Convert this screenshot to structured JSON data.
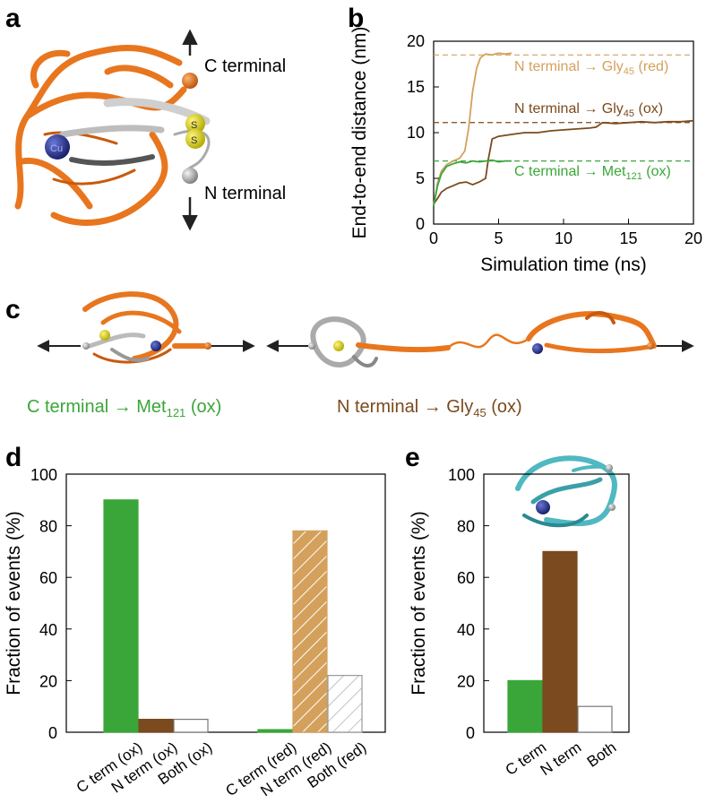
{
  "panels": {
    "a": {
      "label": "a",
      "c_terminal": "C terminal",
      "n_terminal": "N terminal",
      "s_atom": "S",
      "cu_atom": "Cu"
    },
    "b": {
      "label": "b",
      "annotations": [
        {
          "text": "N terminal",
          "arrow": "→",
          "target": "Gly",
          "sub": "45",
          "suffix": " (red)",
          "color": "#d4a15c"
        },
        {
          "text": "N terminal",
          "arrow": "→",
          "target": "Gly",
          "sub": "45",
          "suffix": " (ox)",
          "color": "#7b4a1e"
        },
        {
          "text": "C terminal",
          "arrow": "→",
          "target": "Met",
          "sub": "121",
          "suffix": " (ox)",
          "color": "#3aa63a"
        }
      ]
    },
    "c": {
      "label": "c",
      "left_caption": {
        "text": "C terminal",
        "target": "Met",
        "sub": "121",
        "suffix": " (ox)",
        "color": "#3aa63a"
      },
      "right_caption": {
        "text": "N terminal",
        "target": "Gly",
        "sub": "45",
        "suffix": " (ox)",
        "color": "#7b4a1e"
      }
    },
    "d": {
      "label": "d"
    },
    "e": {
      "label": "e"
    }
  },
  "colors": {
    "green": "#3aa63a",
    "brown": "#7b4a1e",
    "tan": "#d4a15c",
    "orange": "#e8761e",
    "silver": "#b0b0b0",
    "cyan": "#4fb8c0",
    "navy": "#1f2e8c",
    "yellow": "#e6dc1a"
  },
  "chart_data": [
    {
      "panel": "b",
      "type": "line",
      "xlabel": "Simulation time (ns)",
      "ylabel": "End-to-end distance (nm)",
      "xlim": [
        0,
        20
      ],
      "ylim": [
        0,
        20
      ],
      "xticks": [
        0,
        5,
        10,
        15,
        20
      ],
      "yticks": [
        0,
        5,
        10,
        15,
        20
      ],
      "series": [
        {
          "color": "#d4a15c",
          "x": [
            0,
            0.3,
            0.6,
            1.0,
            1.5,
            2.0,
            2.4,
            2.7,
            3.0,
            3.3,
            3.6,
            4.0,
            4.5,
            5.0,
            5.5,
            6.0
          ],
          "y": [
            2.0,
            4.5,
            5.8,
            6.5,
            6.9,
            7.2,
            8.0,
            10.5,
            14.5,
            17.0,
            18.2,
            18.6,
            18.5,
            18.7,
            18.6,
            18.7
          ]
        },
        {
          "color": "#7b4a1e",
          "x": [
            0,
            0.3,
            0.6,
            1.0,
            1.5,
            2.0,
            2.5,
            3.0,
            3.5,
            4.0,
            4.2,
            4.5,
            5.0,
            6.0,
            7.0,
            8.0,
            9.0,
            10.0,
            11.0,
            12.0,
            12.5,
            13.0,
            14.0,
            15.0,
            16.0,
            17.0,
            18.0,
            19.0,
            20.0
          ],
          "y": [
            2.2,
            2.8,
            3.5,
            3.9,
            4.2,
            4.5,
            4.6,
            4.3,
            4.6,
            5.0,
            7.0,
            9.3,
            9.6,
            9.8,
            10.0,
            10.0,
            10.2,
            10.3,
            10.4,
            10.5,
            10.6,
            11.1,
            11.0,
            11.1,
            11.2,
            11.1,
            11.2,
            11.2,
            11.3
          ]
        },
        {
          "color": "#3aa63a",
          "x": [
            0,
            0.3,
            0.6,
            1.0,
            1.5,
            2.0,
            2.5,
            3.0,
            3.5,
            4.0,
            4.5,
            5.0,
            5.5,
            6.0
          ],
          "y": [
            2.0,
            4.2,
            5.5,
            6.3,
            6.6,
            6.8,
            6.7,
            6.9,
            6.8,
            6.9,
            7.0,
            6.8,
            6.9,
            6.9
          ]
        }
      ],
      "reference_lines": [
        {
          "y": 18.5,
          "color": "#d4a15c"
        },
        {
          "y": 11.1,
          "color": "#7b4a1e"
        },
        {
          "y": 6.9,
          "color": "#3aa63a"
        }
      ]
    },
    {
      "panel": "d",
      "type": "bar",
      "ylabel": "Fraction of events (%)",
      "ylim": [
        0,
        100
      ],
      "yticks": [
        0,
        20,
        40,
        60,
        80,
        100
      ],
      "categories": [
        "C term (ox)",
        "N term (ox)",
        "Both (ox)",
        "C term (red)",
        "N term (red)",
        "Both (red)"
      ],
      "values": [
        90,
        5,
        5,
        1,
        78,
        22
      ]
    },
    {
      "panel": "e",
      "type": "bar",
      "ylabel": "Fraction of events (%)",
      "ylim": [
        0,
        100
      ],
      "yticks": [
        0,
        20,
        40,
        60,
        80,
        100
      ],
      "categories": [
        "C term",
        "N term",
        "Both"
      ],
      "values": [
        20,
        70,
        10
      ]
    }
  ]
}
